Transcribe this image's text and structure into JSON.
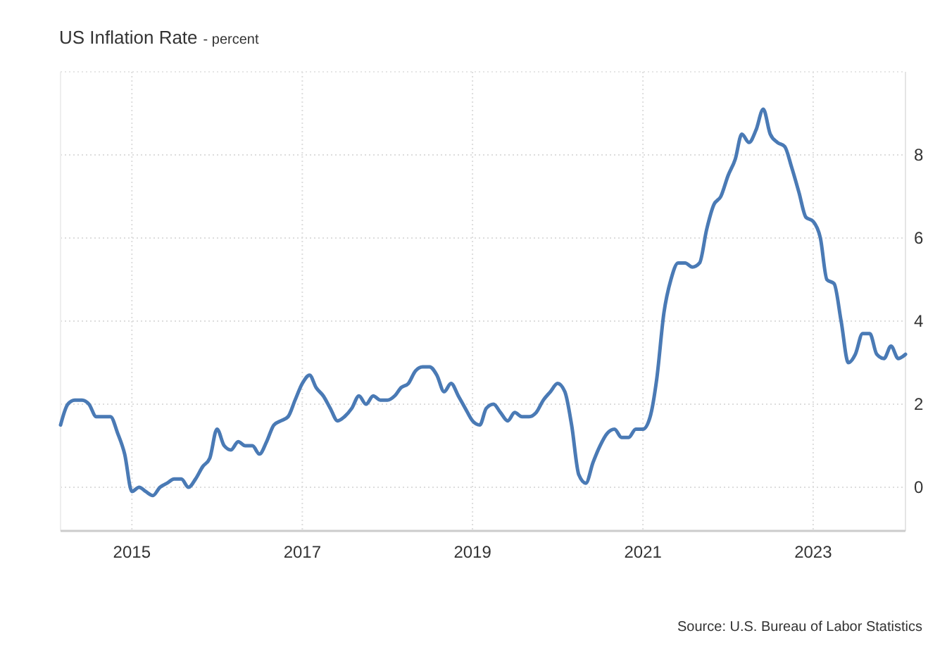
{
  "chart_data": {
    "type": "line",
    "title": "US Inflation Rate",
    "subtitle": "- percent",
    "x": [
      "2014-03",
      "2014-04",
      "2014-05",
      "2014-06",
      "2014-07",
      "2014-08",
      "2014-09",
      "2014-10",
      "2014-11",
      "2014-12",
      "2015-01",
      "2015-02",
      "2015-03",
      "2015-04",
      "2015-05",
      "2015-06",
      "2015-07",
      "2015-08",
      "2015-09",
      "2015-10",
      "2015-11",
      "2015-12",
      "2016-01",
      "2016-02",
      "2016-03",
      "2016-04",
      "2016-05",
      "2016-06",
      "2016-07",
      "2016-08",
      "2016-09",
      "2016-10",
      "2016-11",
      "2016-12",
      "2017-01",
      "2017-02",
      "2017-03",
      "2017-04",
      "2017-05",
      "2017-06",
      "2017-07",
      "2017-08",
      "2017-09",
      "2017-10",
      "2017-11",
      "2017-12",
      "2018-01",
      "2018-02",
      "2018-03",
      "2018-04",
      "2018-05",
      "2018-06",
      "2018-07",
      "2018-08",
      "2018-09",
      "2018-10",
      "2018-11",
      "2018-12",
      "2019-01",
      "2019-02",
      "2019-03",
      "2019-04",
      "2019-05",
      "2019-06",
      "2019-07",
      "2019-08",
      "2019-09",
      "2019-10",
      "2019-11",
      "2019-12",
      "2020-01",
      "2020-02",
      "2020-03",
      "2020-04",
      "2020-05",
      "2020-06",
      "2020-07",
      "2020-08",
      "2020-09",
      "2020-10",
      "2020-11",
      "2020-12",
      "2021-01",
      "2021-02",
      "2021-03",
      "2021-04",
      "2021-05",
      "2021-06",
      "2021-07",
      "2021-08",
      "2021-09",
      "2021-10",
      "2021-11",
      "2021-12",
      "2022-01",
      "2022-02",
      "2022-03",
      "2022-04",
      "2022-05",
      "2022-06",
      "2022-07",
      "2022-08",
      "2022-09",
      "2022-10",
      "2022-11",
      "2022-12",
      "2023-01",
      "2023-02",
      "2023-03",
      "2023-04",
      "2023-05",
      "2023-06",
      "2023-07",
      "2023-08",
      "2023-09",
      "2023-10",
      "2023-11",
      "2023-12",
      "2024-01",
      "2024-02"
    ],
    "series": [
      {
        "color": "#4a7ab5",
        "values": [
          1.5,
          2.0,
          2.1,
          2.1,
          2.0,
          1.7,
          1.7,
          1.7,
          1.3,
          0.8,
          -0.1,
          0.0,
          -0.1,
          -0.2,
          0.0,
          0.1,
          0.2,
          0.2,
          0.0,
          0.2,
          0.5,
          0.7,
          1.4,
          1.0,
          0.9,
          1.1,
          1.0,
          1.0,
          0.8,
          1.1,
          1.5,
          1.6,
          1.7,
          2.1,
          2.5,
          2.7,
          2.4,
          2.2,
          1.9,
          1.6,
          1.7,
          1.9,
          2.2,
          2.0,
          2.2,
          2.1,
          2.1,
          2.2,
          2.4,
          2.5,
          2.8,
          2.9,
          2.9,
          2.7,
          2.3,
          2.5,
          2.2,
          1.9,
          1.6,
          1.5,
          1.9,
          2.0,
          1.8,
          1.6,
          1.8,
          1.7,
          1.7,
          1.8,
          2.1,
          2.3,
          2.5,
          2.3,
          1.5,
          0.3,
          0.1,
          0.6,
          1.0,
          1.3,
          1.4,
          1.2,
          1.2,
          1.4,
          1.4,
          1.7,
          2.6,
          4.2,
          5.0,
          5.4,
          5.4,
          5.3,
          5.4,
          6.2,
          6.8,
          7.0,
          7.5,
          7.9,
          8.5,
          8.3,
          8.6,
          9.1,
          8.5,
          8.3,
          8.2,
          7.7,
          7.1,
          6.5,
          6.4,
          6.0,
          5.0,
          4.9,
          4.0,
          3.0,
          3.2,
          3.7,
          3.7,
          3.2,
          3.1,
          3.4,
          3.1,
          3.2
        ]
      }
    ],
    "xlim": [
      "2014-03",
      "2024-02"
    ],
    "xticks": [
      {
        "value": "2015-01",
        "label": "2015"
      },
      {
        "value": "2017-01",
        "label": "2017"
      },
      {
        "value": "2019-01",
        "label": "2019"
      },
      {
        "value": "2021-01",
        "label": "2021"
      },
      {
        "value": "2023-01",
        "label": "2023"
      }
    ],
    "ylim": [
      -1.05,
      10
    ],
    "yticks": [
      0,
      2,
      4,
      6,
      8
    ],
    "grid": true,
    "line_style": "solid",
    "marker": "none",
    "annotations": [
      "Source: U.S. Bureau of Labor Statistics"
    ]
  }
}
